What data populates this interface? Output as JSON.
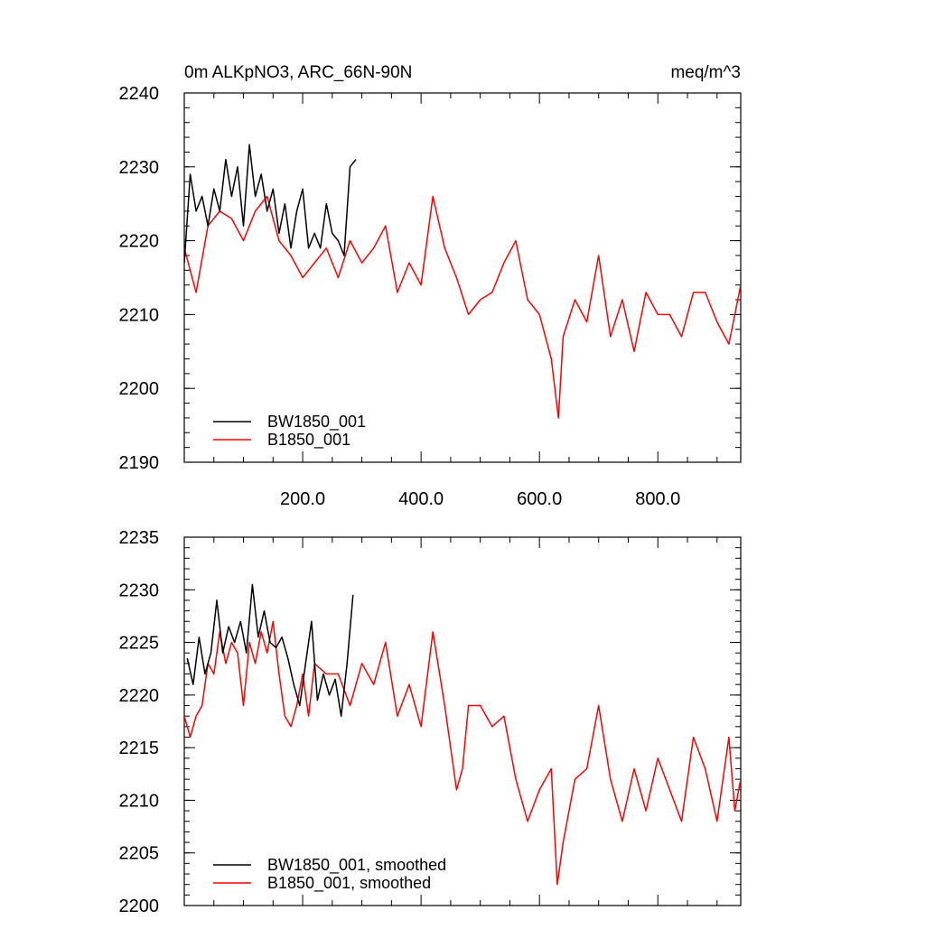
{
  "chart_data": [
    {
      "type": "line",
      "title_left": "0m ALKpNO3, ARC_66N-90N",
      "title_right": "meq/m^3",
      "xlim": [
        0,
        940
      ],
      "ylim": [
        2190,
        2240
      ],
      "x_ticks": [
        200,
        400,
        600,
        800
      ],
      "x_tick_labels": [
        "200.0",
        "400.0",
        "600.0",
        "800.0"
      ],
      "y_ticks": [
        2190,
        2200,
        2210,
        2220,
        2230,
        2240
      ],
      "y_tick_labels": [
        "2190",
        "2200",
        "2210",
        "2220",
        "2230",
        "2240"
      ],
      "legend_position": "bottom-left",
      "series": [
        {
          "name": "BW1850_001",
          "color": "#000000",
          "x": [
            0,
            10,
            20,
            30,
            40,
            50,
            60,
            70,
            80,
            90,
            100,
            110,
            120,
            130,
            140,
            150,
            160,
            170,
            180,
            190,
            200,
            210,
            220,
            230,
            240,
            250,
            260,
            270,
            280,
            290
          ],
          "values": [
            2217,
            2229,
            2224,
            2226,
            2222,
            2227,
            2224,
            2231,
            2226,
            2230,
            2222,
            2233,
            2226,
            2229,
            2224,
            2227,
            2221,
            2225,
            2219,
            2224,
            2227,
            2219,
            2221,
            2219,
            2225,
            2221,
            2220,
            2218,
            2230,
            2231
          ]
        },
        {
          "name": "B1850_001",
          "color": "#ff0000",
          "x": [
            0,
            20,
            40,
            60,
            80,
            100,
            120,
            140,
            160,
            180,
            200,
            220,
            240,
            260,
            280,
            300,
            320,
            340,
            360,
            380,
            400,
            420,
            440,
            460,
            480,
            500,
            520,
            540,
            560,
            580,
            600,
            620,
            632,
            640,
            660,
            680,
            700,
            720,
            740,
            760,
            780,
            800,
            820,
            840,
            860,
            880,
            900,
            920,
            940
          ],
          "values": [
            2219,
            2213,
            2222,
            2224,
            2223,
            2220,
            2224,
            2226,
            2220,
            2218,
            2215,
            2217,
            2219,
            2215,
            2220,
            2217,
            2219,
            2222,
            2213,
            2217,
            2214,
            2226,
            2219,
            2215,
            2210,
            2212,
            2213,
            2217,
            2220,
            2212,
            2210,
            2204,
            2196,
            2207,
            2212,
            2209,
            2218,
            2207,
            2212,
            2205,
            2213,
            2210,
            2210,
            2207,
            2213,
            2213,
            2209,
            2206,
            2214
          ]
        }
      ]
    },
    {
      "type": "line",
      "xlim": [
        0,
        940
      ],
      "ylim": [
        2200,
        2235
      ],
      "y_ticks": [
        2200,
        2205,
        2210,
        2215,
        2220,
        2225,
        2230,
        2235
      ],
      "y_tick_labels": [
        "2200",
        "2205",
        "2210",
        "2215",
        "2220",
        "2225",
        "2230",
        "2235"
      ],
      "legend_position": "bottom-left",
      "series": [
        {
          "name": "BW1850_001, smoothed",
          "color": "#000000",
          "x": [
            5,
            15,
            25,
            35,
            45,
            55,
            65,
            75,
            85,
            95,
            105,
            115,
            125,
            135,
            145,
            155,
            165,
            175,
            185,
            195,
            205,
            215,
            225,
            235,
            245,
            255,
            265,
            275,
            285
          ],
          "values": [
            2223.5,
            2221.0,
            2225.5,
            2222.0,
            2224.0,
            2229.0,
            2224.0,
            2226.5,
            2225.0,
            2227.0,
            2224.0,
            2230.5,
            2225.5,
            2228.0,
            2225.0,
            2224.5,
            2225.5,
            2223.5,
            2221.0,
            2219.0,
            2223.0,
            2227.0,
            2219.5,
            2222.0,
            2220.0,
            2221.5,
            2218.0,
            2223.0,
            2229.5
          ]
        },
        {
          "name": "B1850_001, smoothed",
          "color": "#ff0000",
          "x": [
            0,
            10,
            20,
            30,
            40,
            50,
            60,
            70,
            80,
            90,
            100,
            110,
            120,
            130,
            140,
            150,
            160,
            170,
            180,
            190,
            200,
            210,
            220,
            240,
            260,
            280,
            300,
            320,
            340,
            360,
            380,
            400,
            420,
            440,
            460,
            470,
            480,
            500,
            520,
            540,
            560,
            580,
            600,
            620,
            630,
            640,
            660,
            680,
            700,
            720,
            740,
            760,
            780,
            800,
            820,
            840,
            860,
            880,
            900,
            920,
            930,
            940
          ],
          "values": [
            2218,
            2216,
            2218,
            2219,
            2223,
            2222,
            2226,
            2223,
            2225,
            2224,
            2219,
            2225,
            2223,
            2226,
            2224,
            2227,
            2222,
            2218,
            2217,
            2219,
            2222,
            2218,
            2223,
            2222,
            2222,
            2219,
            2223,
            2221,
            2225,
            2218,
            2221,
            2217,
            2226,
            2219,
            2211,
            2213,
            2219,
            2219,
            2217,
            2218,
            2212,
            2208,
            2211,
            2213,
            2202,
            2206,
            2212,
            2213,
            2219,
            2212,
            2208,
            2213,
            2209,
            2214,
            2211,
            2208,
            2216,
            2213,
            2208,
            2216,
            2209,
            2212
          ]
        }
      ]
    }
  ]
}
